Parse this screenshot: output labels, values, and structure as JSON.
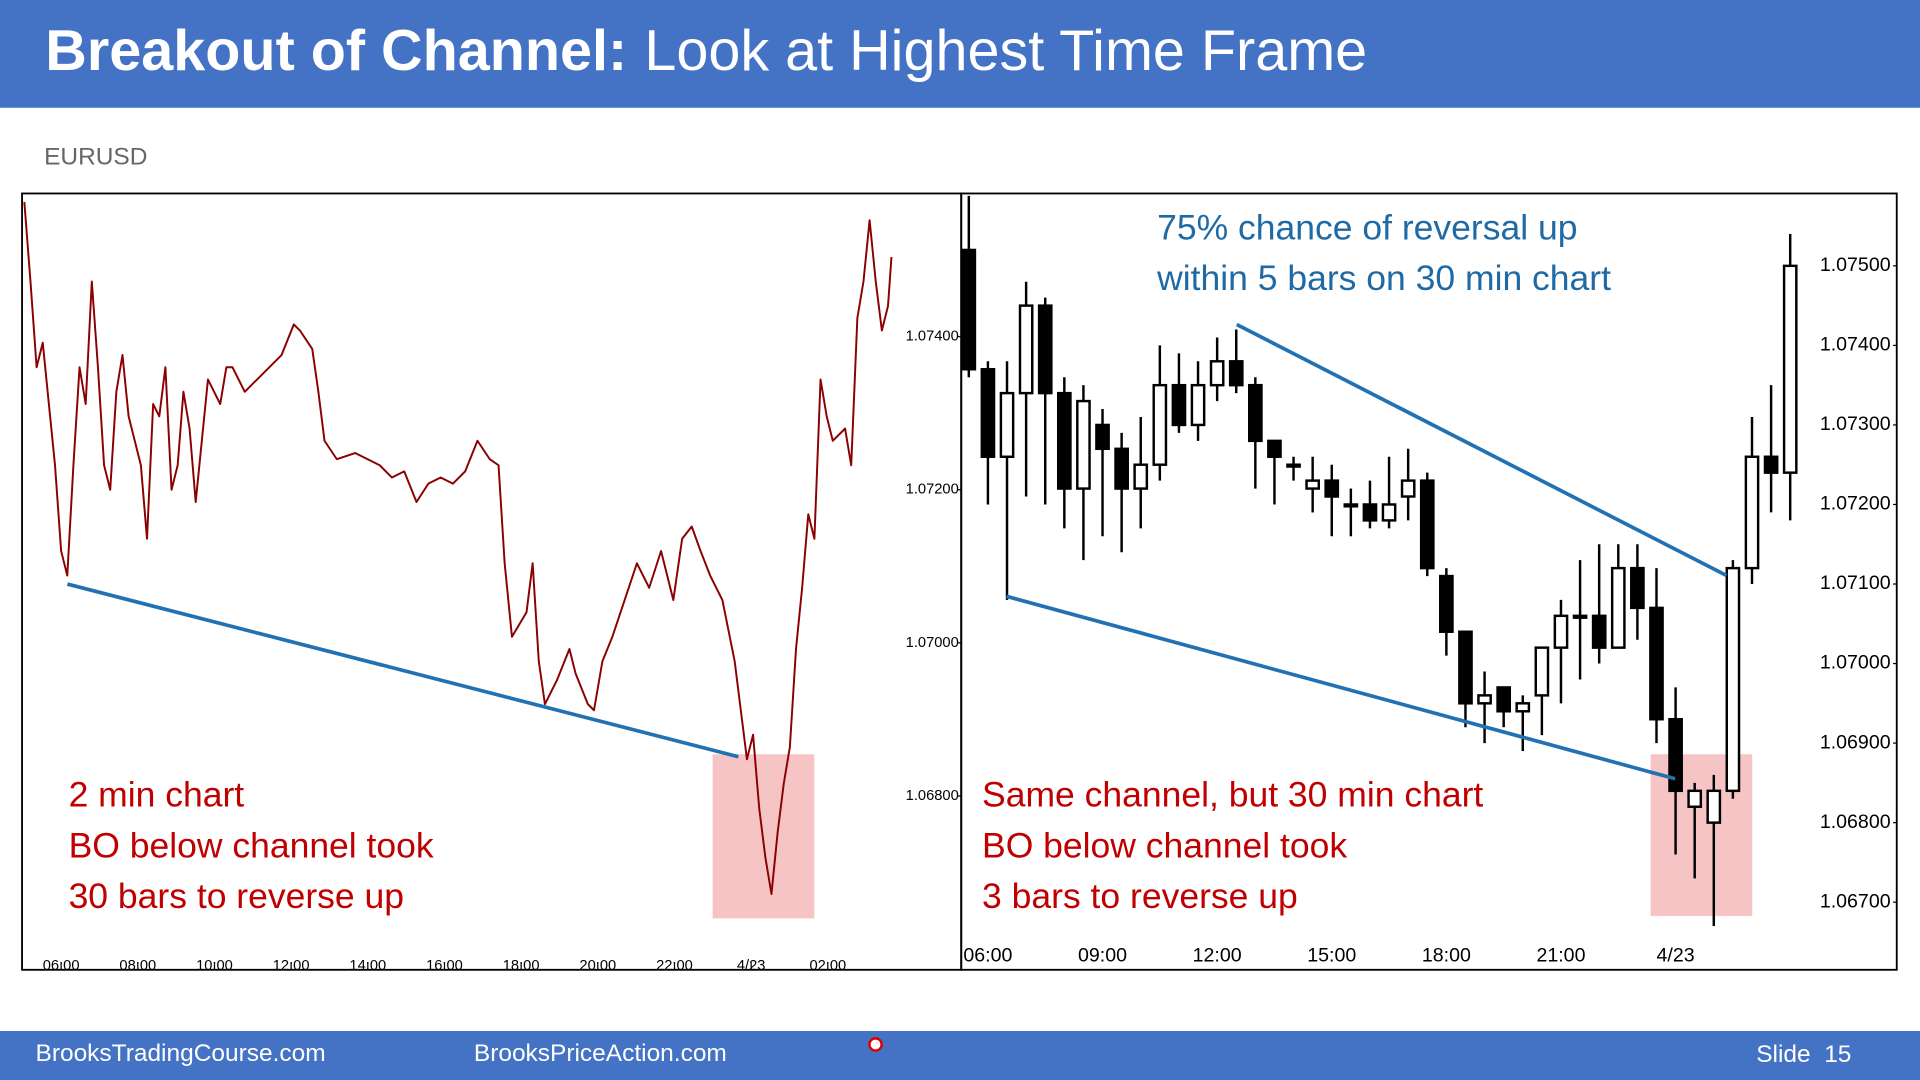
{
  "header": {
    "title_bold": "Breakout of Channel:",
    "title": "Look at Highest Time Frame",
    "symbol": "EURUSD"
  },
  "footer": {
    "left": "BrooksTradingCourse.com",
    "center": "BrooksPriceAction.com",
    "slide": "Slide  15"
  },
  "chart_data": [
    {
      "type": "line",
      "color": "#8b0000",
      "annotation": [
        "2 min chart",
        "BO below channel took",
        "30 bars to reverse up"
      ],
      "x": [
        5.04,
        5.2,
        5.36,
        5.52,
        5.68,
        5.84,
        6,
        6.16,
        6.32,
        6.48,
        6.64,
        6.8,
        6.96,
        7.12,
        7.28,
        7.44,
        7.6,
        7.76,
        7.92,
        8.08,
        8.24,
        8.4,
        8.56,
        8.72,
        8.88,
        9.04,
        9.19,
        9.35,
        9.51,
        9.67,
        9.83,
        10.15,
        10.31,
        10.47,
        10.79,
        11.11,
        11.43,
        11.75,
        12.07,
        12.23,
        12.55,
        12.71,
        12.87,
        13.19,
        13.67,
        13.99,
        14.31,
        14.63,
        14.95,
        15.27,
        15.58,
        15.9,
        16.22,
        16.54,
        16.86,
        17.18,
        17.41,
        17.57,
        17.76,
        18.14,
        18.3,
        18.46,
        18.62,
        18.94,
        19.26,
        19.42,
        19.74,
        19.9,
        20.12,
        20.38,
        20.7,
        21.02,
        21.34,
        21.65,
        21.97,
        22.2,
        22.45,
        22.68,
        22.93,
        23.25,
        23.57,
        23.73,
        23.89,
        24.05,
        24.21,
        24.37,
        24.53,
        24.69,
        24.85,
        25.01,
        25.17,
        25.33,
        25.49,
        25.65,
        25.81,
        25.97,
        26.13,
        26.45,
        26.61,
        26.77,
        26.93,
        27.09,
        27.25,
        27.41,
        27.57,
        27.66
      ],
      "y": [
        1.07576,
        1.07472,
        1.0736,
        1.07392,
        1.07312,
        1.07232,
        1.0712,
        1.07088,
        1.07232,
        1.0736,
        1.07312,
        1.07472,
        1.0736,
        1.07232,
        1.072,
        1.07328,
        1.07376,
        1.07296,
        1.07264,
        1.07232,
        1.07136,
        1.07312,
        1.07296,
        1.0736,
        1.072,
        1.07232,
        1.07328,
        1.0728,
        1.07184,
        1.07264,
        1.07344,
        1.07312,
        1.0736,
        1.0736,
        1.07328,
        1.07344,
        1.0736,
        1.07376,
        1.07416,
        1.07408,
        1.07384,
        1.07328,
        1.07264,
        1.0724,
        1.07248,
        1.0724,
        1.07232,
        1.07216,
        1.07224,
        1.07184,
        1.07208,
        1.07216,
        1.07208,
        1.07224,
        1.07264,
        1.0724,
        1.07232,
        1.07104,
        1.07008,
        1.0704,
        1.07104,
        1.06976,
        1.0692,
        1.06952,
        1.06992,
        1.0696,
        1.0692,
        1.06912,
        1.06976,
        1.07008,
        1.07056,
        1.07104,
        1.07072,
        1.0712,
        1.07056,
        1.07136,
        1.07152,
        1.0712,
        1.07088,
        1.07056,
        1.06976,
        1.06912,
        1.06848,
        1.0688,
        1.06784,
        1.0672,
        1.06672,
        1.06752,
        1.06816,
        1.06864,
        1.06992,
        1.07072,
        1.07168,
        1.07136,
        1.07344,
        1.07296,
        1.07264,
        1.0728,
        1.07232,
        1.07424,
        1.07472,
        1.07552,
        1.07472,
        1.07408,
        1.0744,
        1.07504
      ],
      "xlim": [
        4.98,
        29.48
      ],
      "xticks": [
        {
          "value": 6,
          "label": "06:00"
        },
        {
          "value": 8,
          "label": "08:00"
        },
        {
          "value": 10,
          "label": "10:00"
        },
        {
          "value": 12,
          "label": "12:00"
        },
        {
          "value": 14,
          "label": "14:00"
        },
        {
          "value": 16,
          "label": "16:00"
        },
        {
          "value": 18,
          "label": "18:00"
        },
        {
          "value": 20,
          "label": "20:00"
        },
        {
          "value": 22,
          "label": "22:00"
        },
        {
          "value": 24,
          "label": "4/23"
        },
        {
          "value": 26,
          "label": "02:00"
        }
      ],
      "ylim": [
        1.06573,
        1.07587
      ],
      "yticks": [
        {
          "value": 1.074,
          "label": "1.07400"
        },
        {
          "value": 1.072,
          "label": "1.07200"
        },
        {
          "value": 1.07,
          "label": "1.07000"
        },
        {
          "value": 1.068,
          "label": "1.06800"
        }
      ]
    },
    {
      "type": "candlestick",
      "up_color": "#ffffff",
      "down_color": "#000000",
      "annotation": [
        "Same channel, but 30 min chart",
        "BO below channel took",
        "3 bars to reverse up"
      ],
      "note": [
        "75% chance of reversal up",
        "within 5 bars on 30 min chart"
      ],
      "categories": [
        null,
        "06:00",
        null,
        null,
        null,
        null,
        null,
        "09:00",
        null,
        null,
        null,
        null,
        null,
        "12:00",
        null,
        null,
        null,
        null,
        null,
        "15:00",
        null,
        null,
        null,
        null,
        null,
        "18:00",
        null,
        null,
        null,
        null,
        null,
        "21:00",
        null,
        null,
        null,
        null,
        null,
        "4/23",
        null,
        null,
        null,
        null,
        null,
        null
      ],
      "open": [
        1.0752,
        1.0737,
        1.0726,
        1.0734,
        1.0745,
        1.0734,
        1.0722,
        1.073,
        1.0727,
        1.0722,
        1.0725,
        1.0735,
        1.073,
        1.0735,
        1.0738,
        1.0735,
        1.0728,
        1.0725,
        1.0722,
        1.0723,
        1.072,
        1.072,
        1.0718,
        1.0721,
        1.0723,
        1.0711,
        1.0704,
        1.0695,
        1.0697,
        1.0694,
        1.0696,
        1.0702,
        1.0706,
        1.0706,
        1.0702,
        1.0712,
        1.0707,
        1.0693,
        1.0682,
        1.068,
        1.0684,
        1.0712,
        1.0726,
        1.0724
      ],
      "high": [
        1.07588,
        1.0738,
        1.0738,
        1.0748,
        1.0746,
        1.0736,
        1.0735,
        1.0732,
        1.0729,
        1.0731,
        1.074,
        1.0739,
        1.0738,
        1.0741,
        1.0742,
        1.0736,
        1.0728,
        1.0726,
        1.0726,
        1.0725,
        1.0722,
        1.0723,
        1.0726,
        1.0727,
        1.0724,
        1.0712,
        1.0704,
        1.0699,
        1.0697,
        1.0696,
        1.0702,
        1.0708,
        1.0713,
        1.0715,
        1.0715,
        1.0715,
        1.0712,
        1.0697,
        1.0685,
        1.0686,
        1.0713,
        1.0731,
        1.0735,
        1.0754
      ],
      "low": [
        1.0736,
        1.072,
        1.0708,
        1.0721,
        1.072,
        1.0717,
        1.0713,
        1.0716,
        1.0714,
        1.0717,
        1.0723,
        1.0729,
        1.0728,
        1.0733,
        1.0734,
        1.0722,
        1.072,
        1.0723,
        1.0719,
        1.0716,
        1.0716,
        1.0717,
        1.0717,
        1.0718,
        1.0711,
        1.0701,
        1.0692,
        1.069,
        1.0692,
        1.0689,
        1.0691,
        1.0695,
        1.0698,
        1.07,
        1.0702,
        1.0703,
        1.069,
        1.0676,
        1.0673,
        1.0667,
        1.0683,
        1.071,
        1.0719,
        1.0718
      ],
      "close": [
        1.0737,
        1.0726,
        1.0734,
        1.0745,
        1.0734,
        1.0722,
        1.0733,
        1.0727,
        1.0722,
        1.0725,
        1.0735,
        1.073,
        1.0735,
        1.0738,
        1.0735,
        1.0728,
        1.0726,
        1.0725,
        1.0723,
        1.0721,
        1.072,
        1.0718,
        1.072,
        1.0723,
        1.0712,
        1.0704,
        1.0695,
        1.0696,
        1.0694,
        1.0695,
        1.0702,
        1.0706,
        1.0706,
        1.0702,
        1.0712,
        1.0707,
        1.0693,
        1.0684,
        1.0684,
        1.0684,
        1.0712,
        1.0726,
        1.0724,
        1.075
      ],
      "ylim": [
        1.06615,
        1.07591
      ],
      "yticks": [
        {
          "value": 1.075,
          "label": "1.07500"
        },
        {
          "value": 1.074,
          "label": "1.07400"
        },
        {
          "value": 1.073,
          "label": "1.07300"
        },
        {
          "value": 1.072,
          "label": "1.07200"
        },
        {
          "value": 1.071,
          "label": "1.07100"
        },
        {
          "value": 1.07,
          "label": "1.07000"
        },
        {
          "value": 1.069,
          "label": "1.06900"
        },
        {
          "value": 1.068,
          "label": "1.06800"
        },
        {
          "value": 1.067,
          "label": "1.06700"
        }
      ]
    }
  ]
}
